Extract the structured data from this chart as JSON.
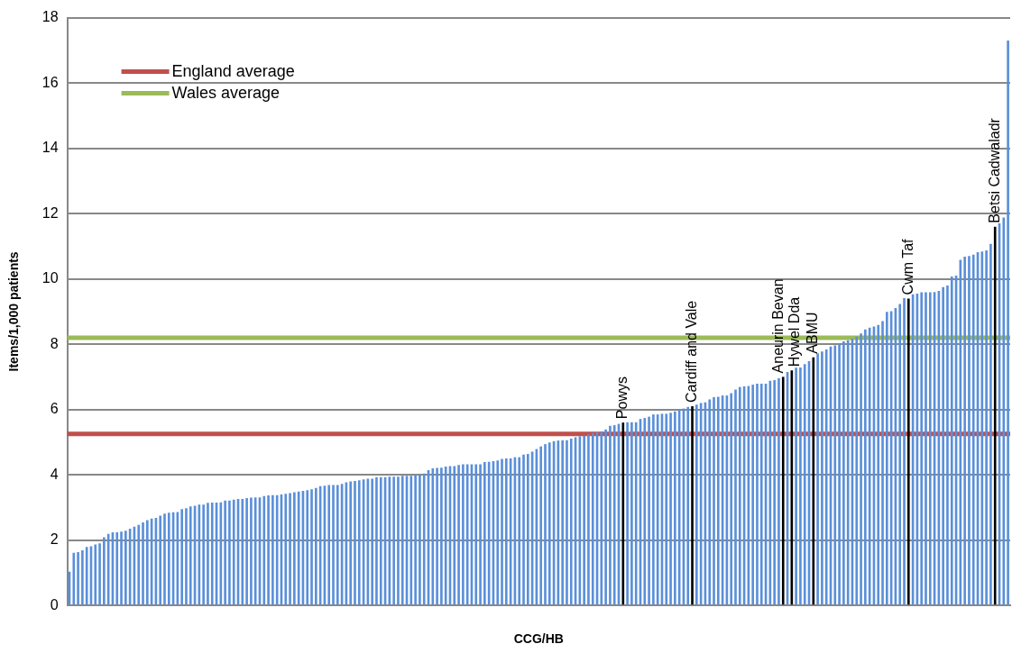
{
  "chart_data": {
    "type": "bar",
    "xlabel": "CCG/HB",
    "ylabel": "Items/1,000 patients",
    "categories": [
      null,
      null,
      null,
      null,
      null,
      null,
      null,
      null,
      null,
      null,
      null,
      null,
      null,
      null,
      null,
      null,
      null,
      null,
      null,
      null,
      null,
      null,
      null,
      null,
      null,
      null,
      null,
      null,
      null,
      null,
      null,
      null,
      null,
      null,
      null,
      null,
      null,
      null,
      null,
      null,
      null,
      null,
      null,
      null,
      null,
      null,
      null,
      null,
      null,
      null,
      null,
      null,
      null,
      null,
      null,
      null,
      null,
      null,
      null,
      null,
      null,
      null,
      null,
      null,
      null,
      null,
      null,
      null,
      null,
      null,
      null,
      null,
      null,
      null,
      null,
      null,
      null,
      null,
      null,
      null,
      null,
      null,
      null,
      null,
      null,
      null,
      null,
      null,
      null,
      null,
      null,
      null,
      null,
      null,
      null,
      null,
      null,
      null,
      null,
      null,
      null,
      null,
      null,
      null,
      null,
      null,
      null,
      null,
      null,
      null,
      null,
      null,
      null,
      null,
      null,
      null,
      null,
      null,
      null,
      null,
      null,
      null,
      null,
      null,
      null,
      null,
      null,
      null,
      null,
      null,
      null,
      null,
      null,
      null,
      null,
      null,
      null,
      null,
      null,
      null,
      null,
      null,
      null,
      null,
      null,
      null,
      null,
      null,
      null,
      null,
      null,
      null,
      null,
      null,
      null,
      null,
      null,
      null,
      null,
      null,
      null,
      null,
      null,
      null,
      null,
      null,
      null,
      null,
      null,
      null,
      null,
      null,
      null,
      null,
      null,
      null,
      null,
      null,
      null,
      null,
      null,
      null,
      null,
      null,
      null,
      null,
      null,
      null,
      null,
      null,
      null,
      null,
      null,
      null,
      null,
      null,
      null,
      null,
      null,
      null,
      null,
      null,
      null,
      null,
      null,
      null,
      null,
      null,
      null,
      null,
      null,
      null,
      null,
      null,
      null,
      null,
      null,
      null
    ],
    "values": [
      1.03,
      1.61,
      1.63,
      1.69,
      1.79,
      1.81,
      1.87,
      1.9,
      2.09,
      2.19,
      2.24,
      2.24,
      2.26,
      2.29,
      2.35,
      2.41,
      2.47,
      2.54,
      2.61,
      2.66,
      2.68,
      2.75,
      2.81,
      2.84,
      2.85,
      2.86,
      2.95,
      2.98,
      3.03,
      3.05,
      3.09,
      3.09,
      3.14,
      3.15,
      3.15,
      3.16,
      3.21,
      3.21,
      3.24,
      3.26,
      3.26,
      3.29,
      3.3,
      3.31,
      3.31,
      3.35,
      3.37,
      3.38,
      3.38,
      3.4,
      3.42,
      3.44,
      3.47,
      3.49,
      3.51,
      3.53,
      3.56,
      3.6,
      3.65,
      3.67,
      3.69,
      3.69,
      3.69,
      3.72,
      3.77,
      3.8,
      3.81,
      3.83,
      3.86,
      3.88,
      3.88,
      3.93,
      3.93,
      3.93,
      3.94,
      3.94,
      3.94,
      3.97,
      3.97,
      3.97,
      4.0,
      4.0,
      4.04,
      4.14,
      4.2,
      4.21,
      4.22,
      4.25,
      4.27,
      4.27,
      4.3,
      4.32,
      4.32,
      4.32,
      4.32,
      4.32,
      4.39,
      4.4,
      4.42,
      4.44,
      4.49,
      4.5,
      4.5,
      4.54,
      4.54,
      4.62,
      4.64,
      4.71,
      4.79,
      4.87,
      4.94,
      4.99,
      5.03,
      5.05,
      5.06,
      5.06,
      5.11,
      5.15,
      5.18,
      5.2,
      5.24,
      5.28,
      5.31,
      5.33,
      5.39,
      5.5,
      5.52,
      5.56,
      5.6,
      5.61,
      5.61,
      5.61,
      5.71,
      5.74,
      5.78,
      5.85,
      5.85,
      5.87,
      5.87,
      5.9,
      5.94,
      5.99,
      6.03,
      6.08,
      6.1,
      6.15,
      6.2,
      6.22,
      6.31,
      6.38,
      6.39,
      6.43,
      6.43,
      6.5,
      6.61,
      6.69,
      6.71,
      6.72,
      6.76,
      6.79,
      6.79,
      6.79,
      6.88,
      6.9,
      6.96,
      7.0,
      7.15,
      7.2,
      7.28,
      7.29,
      7.39,
      7.48,
      7.6,
      7.72,
      7.78,
      7.84,
      7.93,
      7.96,
      8.03,
      8.09,
      8.12,
      8.17,
      8.23,
      8.33,
      8.45,
      8.51,
      8.54,
      8.59,
      8.71,
      8.99,
      9.01,
      9.11,
      9.23,
      9.41,
      9.4,
      9.53,
      9.55,
      9.59,
      9.59,
      9.59,
      9.6,
      9.63,
      9.75,
      9.8,
      10.07,
      10.1,
      10.58,
      10.68,
      10.7,
      10.74,
      10.82,
      10.84,
      10.87,
      11.07,
      11.6,
      11.7,
      11.88,
      17.3
    ],
    "colors": [
      "#5a8fd9",
      "#5a8fd9",
      "#5a8fd9",
      "#5a8fd9",
      "#5a8fd9",
      "#5a8fd9",
      "#5a8fd9",
      "#5a8fd9",
      "#5a8fd9",
      "#5a8fd9",
      "#5a8fd9",
      "#5a8fd9",
      "#5a8fd9",
      "#5a8fd9",
      "#5a8fd9",
      "#5a8fd9",
      "#5a8fd9",
      "#5a8fd9",
      "#5a8fd9",
      "#5a8fd9",
      "#5a8fd9",
      "#5a8fd9",
      "#5a8fd9",
      "#5a8fd9",
      "#5a8fd9",
      "#5a8fd9",
      "#5a8fd9",
      "#5a8fd9",
      "#5a8fd9",
      "#5a8fd9",
      "#5a8fd9",
      "#5a8fd9",
      "#5a8fd9",
      "#5a8fd9",
      "#5a8fd9",
      "#5a8fd9",
      "#5a8fd9",
      "#5a8fd9",
      "#5a8fd9",
      "#5a8fd9",
      "#5a8fd9",
      "#5a8fd9",
      "#5a8fd9",
      "#5a8fd9",
      "#5a8fd9",
      "#5a8fd9",
      "#5a8fd9",
      "#5a8fd9",
      "#5a8fd9",
      "#5a8fd9",
      "#5a8fd9",
      "#5a8fd9",
      "#5a8fd9",
      "#5a8fd9",
      "#5a8fd9",
      "#5a8fd9",
      "#5a8fd9",
      "#5a8fd9",
      "#5a8fd9",
      "#5a8fd9",
      "#5a8fd9",
      "#5a8fd9",
      "#5a8fd9",
      "#5a8fd9",
      "#5a8fd9",
      "#5a8fd9",
      "#5a8fd9",
      "#5a8fd9",
      "#5a8fd9",
      "#5a8fd9",
      "#5a8fd9",
      "#5a8fd9",
      "#5a8fd9",
      "#5a8fd9",
      "#5a8fd9",
      "#5a8fd9",
      "#5a8fd9",
      "#5a8fd9",
      "#5a8fd9",
      "#5a8fd9",
      "#5a8fd9",
      "#5a8fd9",
      "#5a8fd9",
      "#5a8fd9",
      "#5a8fd9",
      "#5a8fd9",
      "#5a8fd9",
      "#5a8fd9",
      "#5a8fd9",
      "#5a8fd9",
      "#5a8fd9",
      "#5a8fd9",
      "#5a8fd9",
      "#5a8fd9",
      "#5a8fd9",
      "#5a8fd9",
      "#5a8fd9",
      "#5a8fd9",
      "#5a8fd9",
      "#5a8fd9",
      "#5a8fd9",
      "#5a8fd9",
      "#5a8fd9",
      "#5a8fd9",
      "#5a8fd9",
      "#5a8fd9",
      "#5a8fd9",
      "#5a8fd9",
      "#5a8fd9",
      "#5a8fd9",
      "#5a8fd9",
      "#5a8fd9",
      "#5a8fd9",
      "#5a8fd9",
      "#5a8fd9",
      "#5a8fd9",
      "#5a8fd9",
      "#5a8fd9",
      "#5a8fd9",
      "#5a8fd9",
      "#5a8fd9",
      "#5a8fd9",
      "#5a8fd9",
      "#5a8fd9",
      "#5a8fd9",
      "#5a8fd9",
      "#5a8fd9",
      "#5a8fd9",
      "#000000",
      "#5a8fd9",
      "#5a8fd9",
      "#5a8fd9",
      "#5a8fd9",
      "#5a8fd9",
      "#5a8fd9",
      "#5a8fd9",
      "#5a8fd9",
      "#5a8fd9",
      "#5a8fd9",
      "#5a8fd9",
      "#5a8fd9",
      "#5a8fd9",
      "#5a8fd9",
      "#5a8fd9",
      "#000000",
      "#5a8fd9",
      "#5a8fd9",
      "#5a8fd9",
      "#5a8fd9",
      "#5a8fd9",
      "#5a8fd9",
      "#5a8fd9",
      "#5a8fd9",
      "#5a8fd9",
      "#5a8fd9",
      "#5a8fd9",
      "#5a8fd9",
      "#5a8fd9",
      "#5a8fd9",
      "#5a8fd9",
      "#5a8fd9",
      "#5a8fd9",
      "#5a8fd9",
      "#5a8fd9",
      "#5a8fd9",
      "#000000",
      "#5a8fd9",
      "#000000",
      "#5a8fd9",
      "#5a8fd9",
      "#5a8fd9",
      "#5a8fd9",
      "#000000",
      "#5a8fd9",
      "#5a8fd9",
      "#5a8fd9",
      "#5a8fd9",
      "#5a8fd9",
      "#5a8fd9",
      "#5a8fd9",
      "#5a8fd9",
      "#5a8fd9",
      "#5a8fd9",
      "#5a8fd9",
      "#5a8fd9",
      "#5a8fd9",
      "#5a8fd9",
      "#5a8fd9",
      "#5a8fd9",
      "#5a8fd9",
      "#5a8fd9",
      "#5a8fd9",
      "#5a8fd9",
      "#5a8fd9",
      "#000000",
      "#5a8fd9",
      "#5a8fd9",
      "#5a8fd9",
      "#5a8fd9",
      "#5a8fd9",
      "#5a8fd9",
      "#5a8fd9",
      "#5a8fd9",
      "#5a8fd9",
      "#5a8fd9",
      "#5a8fd9",
      "#5a8fd9",
      "#5a8fd9",
      "#5a8fd9",
      "#5a8fd9",
      "#5a8fd9",
      "#5a8fd9",
      "#5a8fd9",
      "#5a8fd9",
      "#000000",
      "#5a8fd9",
      "#5a8fd9",
      "#5a8fd9"
    ],
    "value_labels": [
      null,
      null,
      null,
      null,
      null,
      null,
      null,
      null,
      null,
      null,
      null,
      null,
      null,
      null,
      null,
      null,
      null,
      null,
      null,
      null,
      null,
      null,
      null,
      null,
      null,
      null,
      null,
      null,
      null,
      null,
      null,
      null,
      null,
      null,
      null,
      null,
      null,
      null,
      null,
      null,
      null,
      null,
      null,
      null,
      null,
      null,
      null,
      null,
      null,
      null,
      null,
      null,
      null,
      null,
      null,
      null,
      null,
      null,
      null,
      null,
      null,
      null,
      null,
      null,
      null,
      null,
      null,
      null,
      null,
      null,
      null,
      null,
      null,
      null,
      null,
      null,
      null,
      null,
      null,
      null,
      null,
      null,
      null,
      null,
      null,
      null,
      null,
      null,
      null,
      null,
      null,
      null,
      null,
      null,
      null,
      null,
      null,
      null,
      null,
      null,
      null,
      null,
      null,
      null,
      null,
      null,
      null,
      null,
      null,
      null,
      null,
      null,
      null,
      null,
      null,
      null,
      null,
      null,
      null,
      null,
      null,
      null,
      null,
      null,
      null,
      null,
      null,
      null,
      "Powys",
      null,
      null,
      null,
      null,
      null,
      null,
      null,
      null,
      null,
      null,
      null,
      null,
      null,
      null,
      null,
      "Cardiff and Vale",
      null,
      null,
      null,
      null,
      null,
      null,
      null,
      null,
      null,
      null,
      null,
      null,
      null,
      null,
      null,
      null,
      null,
      null,
      null,
      null,
      "Aneurin Bevan",
      null,
      "Hywel Dda",
      null,
      null,
      null,
      null,
      "ABMU",
      null,
      null,
      null,
      null,
      null,
      null,
      null,
      null,
      null,
      null,
      null,
      null,
      null,
      null,
      null,
      null,
      null,
      null,
      null,
      null,
      null,
      "Cwm Taf",
      null,
      null,
      null,
      null,
      null,
      null,
      null,
      null,
      null,
      null,
      null,
      null,
      null,
      null,
      null,
      null,
      null,
      null,
      null,
      "Betsi Cadwaladr",
      null,
      null,
      null
    ],
    "ylim": [
      0,
      18
    ],
    "yticks": [
      0,
      2,
      4,
      6,
      8,
      10,
      12,
      14,
      16,
      18
    ],
    "grid": "y",
    "legend": "top left",
    "ref_lines": [
      {
        "axis": "y",
        "value": 5.25,
        "label": "England average",
        "color": "#c0504d"
      },
      {
        "axis": "y",
        "value": 8.2,
        "label": "Wales average",
        "color": "#9bbb59"
      }
    ]
  }
}
